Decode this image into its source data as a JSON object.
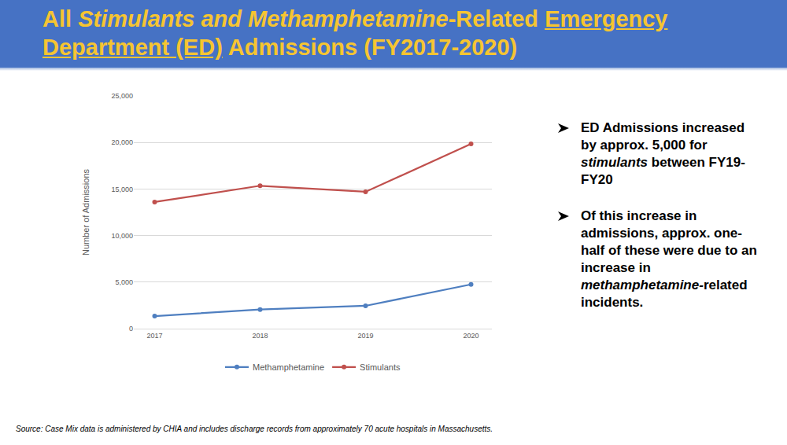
{
  "header": {
    "segments": [
      {
        "text": "All "
      },
      {
        "text": "Stimulants and Methamphetamine",
        "italic": true
      },
      {
        "text": "-Related "
      },
      {
        "text": "Emergency Department (ED)",
        "underline": true
      },
      {
        "text": " Admissions (FY2017-2020)"
      }
    ]
  },
  "chart_data": {
    "type": "line",
    "y_label": "Number of Admissions",
    "categories": [
      "2017",
      "2018",
      "2019",
      "2020"
    ],
    "series": [
      {
        "name": "Methamphetamine",
        "color": "#4f7fc0",
        "values": [
          1350,
          2050,
          2450,
          4750
        ],
        "marker": "circle"
      },
      {
        "name": "Stimulants",
        "color": "#c0504d",
        "values": [
          13600,
          15350,
          14700,
          19850
        ],
        "marker": "circle"
      }
    ],
    "ylim": [
      0,
      25000
    ],
    "yticks": [
      0,
      {
        "value": 5000,
        "label": "5,000"
      },
      {
        "value": 10000,
        "label": "10,000"
      },
      {
        "value": 15000,
        "label": "15,000"
      },
      {
        "value": 20000,
        "label": "20,000"
      },
      {
        "value": 25000,
        "label": "25,000"
      }
    ],
    "grid": true,
    "legend": "bottom"
  },
  "bullets": [
    [
      {
        "text": "ED Admissions increased by approx. 5,000 for "
      },
      {
        "text": "stimulants",
        "italic": true
      },
      {
        "text": " between FY19-FY20"
      }
    ],
    [
      {
        "text": "Of this increase in admissions, approx. one-half of these were due to an increase in "
      },
      {
        "text": "methamphetamine-",
        "italic": true
      },
      {
        "text": "related incidents."
      }
    ]
  ],
  "source": "Source: Case Mix data is administered by CHIA and includes discharge records from approximately 70 acute hospitals in Massachusetts."
}
